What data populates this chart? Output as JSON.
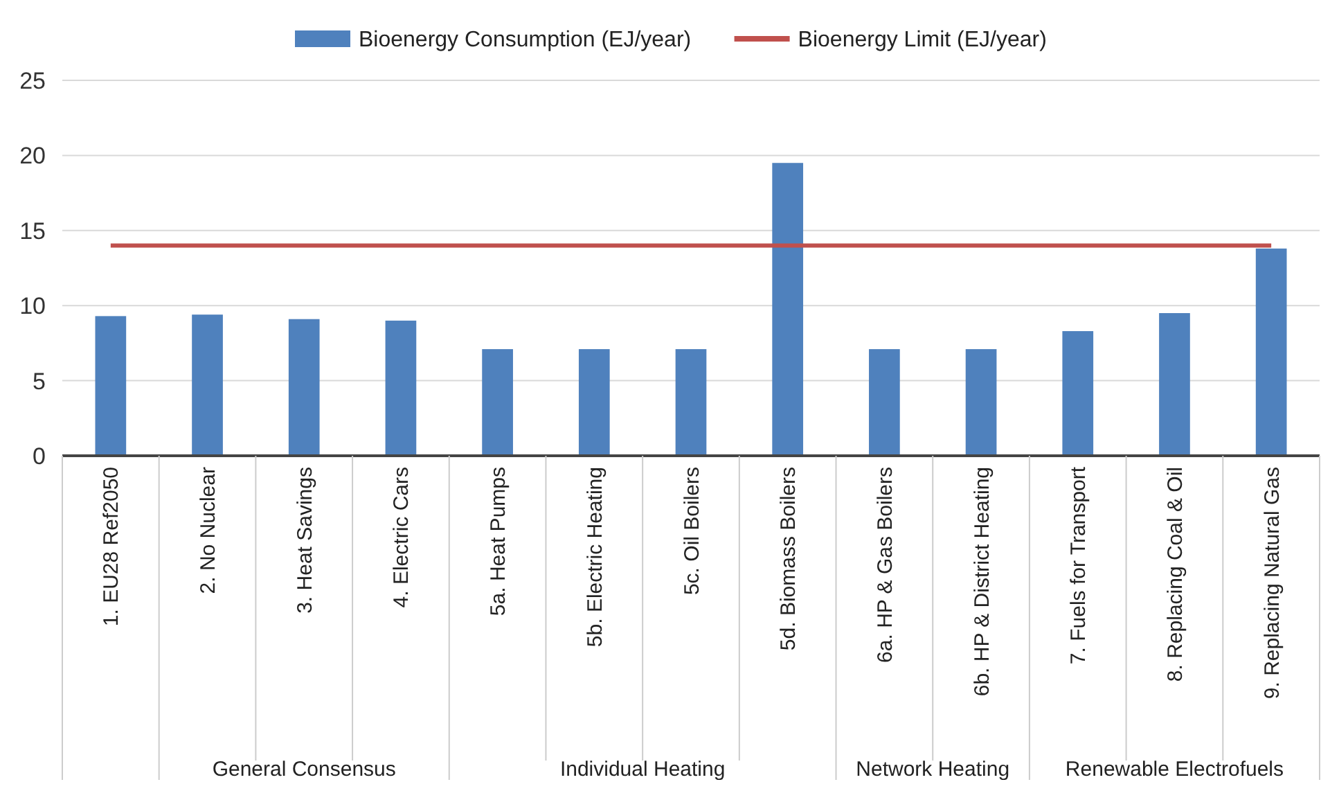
{
  "chart_data": {
    "type": "bar",
    "categories": [
      "1. EU28 Ref2050",
      "2. No Nuclear",
      "3. Heat Savings",
      "4. Electric Cars",
      "5a. Heat Pumps",
      "5b. Electric Heating",
      "5c. Oil Boilers",
      "5d. Biomass Boilers",
      "6a. HP & Gas Boilers",
      "6b. HP & District Heating",
      "7. Fuels for Transport",
      "8. Replacing Coal & Oil",
      "9. Replacing Natural Gas"
    ],
    "series": [
      {
        "name": "Bioenergy Consumption (EJ/year)",
        "color": "#4f81bd",
        "values": [
          9.3,
          9.4,
          9.1,
          9.0,
          7.1,
          7.1,
          7.1,
          19.5,
          7.1,
          7.1,
          8.3,
          9.5,
          13.8
        ]
      },
      {
        "name": "Bioenergy Limit (EJ/year)",
        "color": "#c0504d",
        "type": "line",
        "values": [
          14,
          14,
          14,
          14,
          14,
          14,
          14,
          14,
          14,
          14,
          14,
          14,
          14
        ]
      }
    ],
    "ylim": [
      0,
      25
    ],
    "yticks": [
      0,
      5,
      10,
      15,
      20,
      25
    ],
    "grid": "y",
    "legend": "top",
    "marker": "none",
    "annotations": [
      "General Consensus",
      "Individual Heating",
      "Network Heating",
      "Renewable Electrofuels"
    ]
  }
}
